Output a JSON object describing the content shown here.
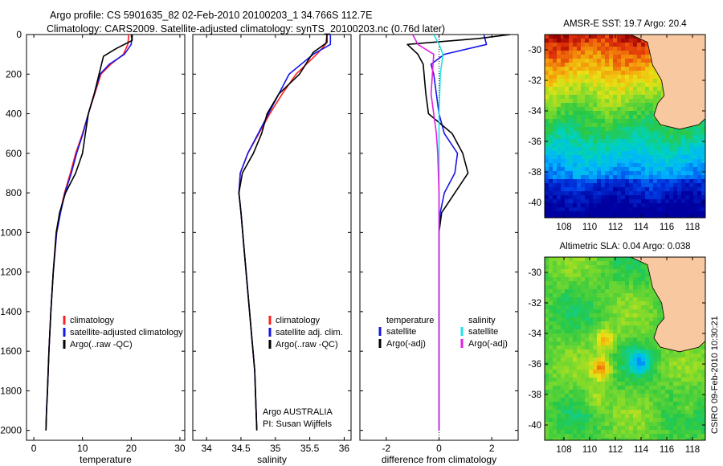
{
  "header": {
    "title_line1": "Argo profile: CS 5901635_82 02-Feb-2010 20100203_1 34.766S 112.7E",
    "title_line2": "Climatology: CARS2009. Satellite-adjusted climatology: synTS_20100203.nc (0.76d later)"
  },
  "side_label": "CSIRO 09-Feb-2010 10:30:21",
  "colors": {
    "climatology": "#ff2020",
    "satellite": "#1515e6",
    "argo": "#000000",
    "satellite_salinity": "#20e0e8",
    "argo_salinity_adj": "#e020e0",
    "land": "#f8c8a0"
  },
  "chart_data": [
    {
      "type": "line",
      "name": "temperature-profile",
      "xlabel": "temperature",
      "xlim": [
        -1.5,
        31
      ],
      "ylim": [
        0,
        2050
      ],
      "y_reversed": true,
      "xticks": [
        0,
        10,
        20,
        30
      ],
      "yticks": [
        0,
        200,
        400,
        600,
        800,
        1000,
        1200,
        1400,
        1600,
        1800,
        2000
      ],
      "series": [
        {
          "name": "climatology",
          "color_key": "climatology",
          "x": [
            19.5,
            19.3,
            18.4,
            15.8,
            13.8,
            12.5,
            11.2,
            10.0,
            8.6,
            7.5,
            6.3,
            5.4,
            4.6,
            4.0,
            3.5,
            3.1,
            2.8,
            2.6,
            2.5
          ],
          "y": [
            0,
            50,
            100,
            150,
            200,
            300,
            400,
            500,
            600,
            700,
            800,
            900,
            1000,
            1200,
            1400,
            1600,
            1800,
            1900,
            2000
          ]
        },
        {
          "name": "satellite-adjusted climatology",
          "color_key": "satellite",
          "x": [
            20.2,
            20.0,
            18.6,
            15.5,
            13.6,
            12.4,
            11.2,
            10.1,
            8.8,
            7.7,
            6.4,
            5.5,
            4.7,
            4.0,
            3.5,
            3.1,
            2.8,
            2.6,
            2.5
          ],
          "y": [
            0,
            50,
            100,
            150,
            200,
            300,
            400,
            500,
            600,
            700,
            800,
            900,
            1000,
            1200,
            1400,
            1600,
            1800,
            1900,
            2000
          ]
        },
        {
          "name": "Argo(..raw -QC)",
          "color_key": "argo",
          "x": [
            20.2,
            20.2,
            17.0,
            14.3,
            13.4,
            12.4,
            11.2,
            10.6,
            10.0,
            8.6,
            6.5,
            5.3,
            4.6,
            4.0,
            3.5,
            3.1,
            2.8,
            2.6,
            2.5
          ],
          "y": [
            0,
            30,
            70,
            110,
            200,
            300,
            400,
            500,
            600,
            700,
            800,
            900,
            1000,
            1200,
            1400,
            1600,
            1800,
            1900,
            2000
          ]
        }
      ],
      "legend": {
        "position": "lower-right",
        "entries": [
          "climatology",
          "satellite-adjusted climatology",
          "Argo(..raw -QC)"
        ]
      }
    },
    {
      "type": "line",
      "name": "salinity-profile",
      "xlabel": "salinity",
      "xlim": [
        33.8,
        36.1
      ],
      "ylim": [
        0,
        2050
      ],
      "y_reversed": true,
      "xticks": [
        34,
        34.5,
        35,
        35.5,
        36
      ],
      "series": [
        {
          "name": "climatology",
          "color_key": "climatology",
          "x": [
            35.75,
            35.73,
            35.6,
            35.3,
            35.1,
            34.92,
            34.76,
            34.6,
            34.49,
            34.47,
            34.5,
            34.55,
            34.6,
            34.65,
            34.7,
            34.72,
            34.73
          ],
          "y": [
            0,
            50,
            100,
            200,
            300,
            400,
            500,
            600,
            700,
            800,
            900,
            1100,
            1300,
            1500,
            1700,
            1900,
            2000
          ]
        },
        {
          "name": "satellite adj. clim.",
          "color_key": "satellite",
          "x": [
            35.8,
            35.8,
            35.55,
            35.2,
            35.05,
            34.9,
            34.75,
            34.6,
            34.49,
            34.47,
            34.5,
            34.55,
            34.6,
            34.65,
            34.7,
            34.72,
            34.73
          ],
          "y": [
            0,
            50,
            100,
            200,
            300,
            400,
            500,
            600,
            700,
            800,
            900,
            1100,
            1300,
            1500,
            1700,
            1900,
            2000
          ]
        },
        {
          "name": "Argo(..raw -QC)",
          "color_key": "argo",
          "x": [
            35.75,
            35.75,
            35.55,
            35.35,
            35.05,
            34.88,
            34.8,
            34.68,
            34.52,
            34.47,
            34.5,
            34.55,
            34.6,
            34.65,
            34.7,
            34.72,
            34.73
          ],
          "y": [
            0,
            40,
            90,
            200,
            300,
            400,
            500,
            600,
            700,
            800,
            900,
            1100,
            1300,
            1500,
            1700,
            1900,
            2000
          ]
        }
      ],
      "legend": {
        "position": "lower-right",
        "entries": [
          "climatology",
          "satellite adj. clim.",
          "Argo(..raw -QC)"
        ]
      },
      "annotation": [
        "Argo AUSTRALIA",
        "PI: Susan Wijffels"
      ]
    },
    {
      "type": "line",
      "name": "difference-profile",
      "xlabel": "difference from climatology",
      "xlim": [
        -3,
        3
      ],
      "ylim": [
        0,
        2050
      ],
      "y_reversed": true,
      "xticks": [
        -2,
        0,
        2
      ],
      "zero_line": true,
      "series": [
        {
          "name": "temperature satellite",
          "color_key": "satellite",
          "x": [
            1.7,
            1.8,
            0.2,
            -0.3,
            -0.2,
            -0.1,
            0.0,
            0.2,
            0.7,
            0.6,
            0.2,
            0.05,
            0.0,
            0.0,
            0.0,
            0.0,
            0.0
          ],
          "y": [
            0,
            50,
            100,
            150,
            200,
            300,
            400,
            500,
            600,
            700,
            800,
            900,
            1000,
            1200,
            1500,
            1800,
            2000
          ]
        },
        {
          "name": "temperature Argo(-adj)",
          "color_key": "argo",
          "x": [
            2.7,
            1.5,
            -1.2,
            -0.8,
            -0.6,
            -0.5,
            -0.4,
            0.5,
            0.9,
            1.1,
            0.6,
            0.1,
            0.0,
            0.0,
            0.0,
            0.0,
            0.0
          ],
          "y": [
            0,
            20,
            50,
            100,
            150,
            300,
            400,
            500,
            600,
            700,
            800,
            900,
            1000,
            1200,
            1500,
            1800,
            2000
          ]
        },
        {
          "name": "salinity satellite",
          "color_key": "satellite_salinity",
          "x": [
            -0.2,
            0.0,
            0.15,
            0.05,
            0.0,
            0.0,
            0.0,
            0.0,
            0.0,
            0.0,
            0.0,
            0.0
          ],
          "y": [
            0,
            50,
            100,
            200,
            400,
            600,
            800,
            1000,
            1300,
            1600,
            1800,
            2000
          ]
        },
        {
          "name": "salinity Argo(-adj)",
          "color_key": "argo_salinity_adj",
          "x": [
            -1.0,
            -0.8,
            -0.2,
            -0.3,
            -0.2,
            -0.1,
            -0.05,
            0.0,
            0.0,
            0.0,
            0.0
          ],
          "y": [
            0,
            50,
            100,
            300,
            400,
            500,
            600,
            800,
            1000,
            1500,
            2000
          ]
        }
      ],
      "legend": {
        "position": "lower-center",
        "group_titles": [
          "temperature",
          "salinity"
        ],
        "entries": [
          "satellite",
          "Argo(-adj)",
          "satellite",
          "Argo(-adj)"
        ]
      }
    },
    {
      "type": "heatmap",
      "name": "amsr-sst-map",
      "title": "AMSR-E SST: 19.7  Argo: 20.4",
      "xlim": [
        106.5,
        119
      ],
      "ylim": [
        -41,
        -29
      ],
      "xticks": [
        108,
        110,
        112,
        114,
        116,
        118
      ],
      "yticks": [
        -30,
        -32,
        -34,
        -36,
        -38,
        -40
      ],
      "argo_position": {
        "lon": 112.7,
        "lat": -34.766
      },
      "coastline_lonlat": [
        [
          113.2,
          -29.0
        ],
        [
          114.5,
          -29.5
        ],
        [
          114.9,
          -31.0
        ],
        [
          115.6,
          -32.0
        ],
        [
          115.8,
          -33.0
        ],
        [
          115.3,
          -33.5
        ],
        [
          115.0,
          -34.3
        ],
        [
          115.5,
          -34.9
        ],
        [
          117.0,
          -35.2
        ],
        [
          118.5,
          -34.9
        ],
        [
          119.0,
          -34.5
        ]
      ]
    },
    {
      "type": "heatmap",
      "name": "altimetric-sla-map",
      "title": "Altimetric SLA: 0.04  Argo: 0.038",
      "xlim": [
        106.5,
        119
      ],
      "ylim": [
        -41,
        -29
      ],
      "xticks": [
        108,
        110,
        112,
        114,
        116,
        118
      ],
      "yticks": [
        -30,
        -32,
        -34,
        -36,
        -38,
        -40
      ],
      "argo_position": {
        "lon": 112.7,
        "lat": -34.766
      },
      "coastline_lonlat": [
        [
          113.2,
          -29.0
        ],
        [
          114.5,
          -29.5
        ],
        [
          114.9,
          -31.0
        ],
        [
          115.6,
          -32.0
        ],
        [
          115.8,
          -33.0
        ],
        [
          115.3,
          -33.5
        ],
        [
          115.0,
          -34.3
        ],
        [
          115.5,
          -34.9
        ],
        [
          117.0,
          -35.2
        ],
        [
          118.5,
          -34.9
        ],
        [
          119.0,
          -34.5
        ]
      ]
    }
  ]
}
